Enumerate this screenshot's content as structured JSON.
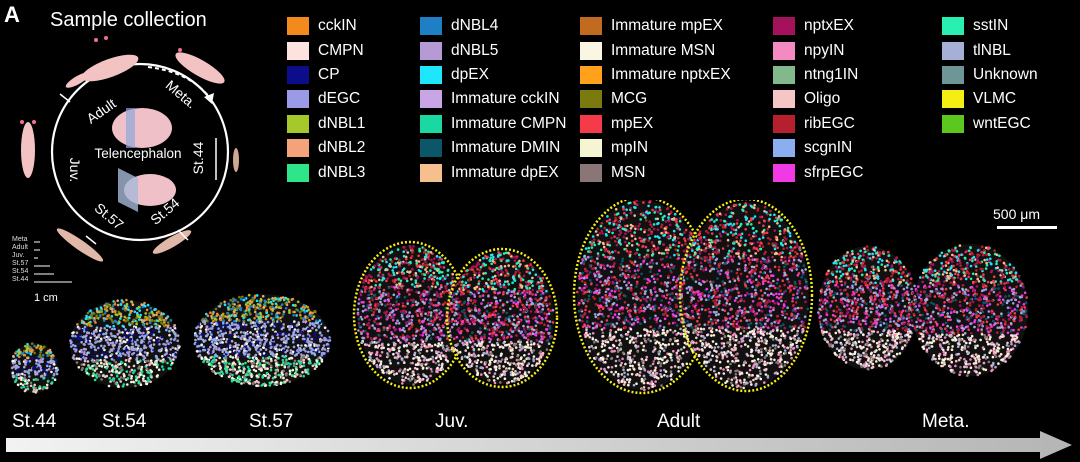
{
  "panel_letter": "A",
  "sample_collection": {
    "title": "Sample collection",
    "cycle_labels": [
      "Adult",
      "Meta.",
      "St.44",
      "St.54",
      "St.57",
      "Juv."
    ],
    "center_label": "Telencephalon",
    "size_legend": [
      "Meta",
      "Adult",
      "Juv.",
      "St.57",
      "St.54",
      "St.44"
    ],
    "size_scale": "1 cm"
  },
  "legend": [
    {
      "label": "cckIN",
      "color": "#f28a1e"
    },
    {
      "label": "CMPN",
      "color": "#fde3e0"
    },
    {
      "label": "CP",
      "color": "#0d0d8c"
    },
    {
      "label": "dEGC",
      "color": "#9a9ae6"
    },
    {
      "label": "dNBL1",
      "color": "#a5c92a"
    },
    {
      "label": "dNBL2",
      "color": "#f4a27a"
    },
    {
      "label": "dNBL3",
      "color": "#2ee58a"
    },
    {
      "label": "dNBL4",
      "color": "#1f7fc4"
    },
    {
      "label": "dNBL5",
      "color": "#b69ad6"
    },
    {
      "label": "dpEX",
      "color": "#1fe6ff"
    },
    {
      "label": "Immature cckIN",
      "color": "#c8a6e6"
    },
    {
      "label": "Immature CMPN",
      "color": "#1ad8a2"
    },
    {
      "label": "Immature DMIN",
      "color": "#0b5668"
    },
    {
      "label": "Immature dpEX",
      "color": "#f6c08e"
    },
    {
      "label": "Immature mpEX",
      "color": "#c26a1f"
    },
    {
      "label": "Immature MSN",
      "color": "#fbf5e3"
    },
    {
      "label": "Immature nptxEX",
      "color": "#ffa11a"
    },
    {
      "label": "MCG",
      "color": "#7a7a0f"
    },
    {
      "label": "mpEX",
      "color": "#f53a4a"
    },
    {
      "label": "mpIN",
      "color": "#f5f5d2"
    },
    {
      "label": "MSN",
      "color": "#8a7676"
    },
    {
      "label": "nptxEX",
      "color": "#a3125a"
    },
    {
      "label": "npyIN",
      "color": "#f58ac2"
    },
    {
      "label": "ntng1IN",
      "color": "#82b88a"
    },
    {
      "label": "Oligo",
      "color": "#f6c6c6"
    },
    {
      "label": "ribEGC",
      "color": "#b51f2e"
    },
    {
      "label": "scgnIN",
      "color": "#8aaef0"
    },
    {
      "label": "sfrpEGC",
      "color": "#f03ae6"
    },
    {
      "label": "sstIN",
      "color": "#28f0b0"
    },
    {
      "label": "tlNBL",
      "color": "#a6b0d6"
    },
    {
      "label": "Unknown",
      "color": "#6e9696"
    },
    {
      "label": "VLMC",
      "color": "#f5ee12"
    },
    {
      "label": "wntEGC",
      "color": "#5cc81f"
    }
  ],
  "scale_bar": "500 μm",
  "stages": [
    "St.44",
    "St.54",
    "St.57",
    "Juv.",
    "Adult",
    "Meta."
  ]
}
